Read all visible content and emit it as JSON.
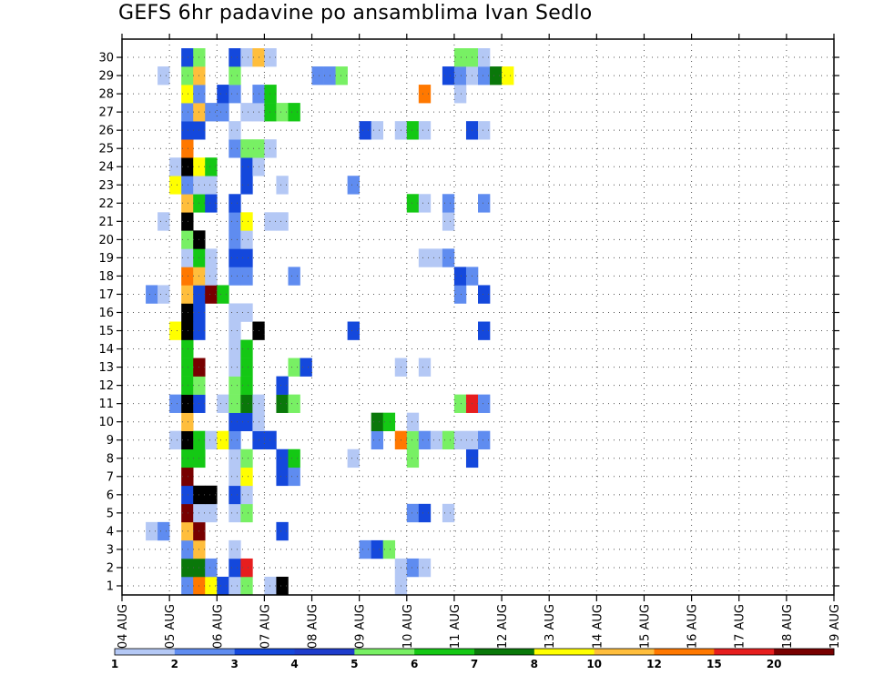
{
  "chart_data": {
    "type": "heatmap",
    "title": "GEFS 6hr padavine po ansamblima Ivan Sedlo",
    "xlabel": "",
    "ylabel": "",
    "x_tick_labels": [
      "04 AUG",
      "05 AUG",
      "06 AUG",
      "07 AUG",
      "08 AUG",
      "09 AUG",
      "10 AUG",
      "11 AUG",
      "12 AUG",
      "13 AUG",
      "14 AUG",
      "15 AUG",
      "16 AUG",
      "17 AUG",
      "18 AUG",
      "19 AUG"
    ],
    "y_tick_labels": [
      "1",
      "2",
      "3",
      "4",
      "5",
      "6",
      "7",
      "8",
      "9",
      "10",
      "11",
      "12",
      "13",
      "14",
      "15",
      "16",
      "17",
      "18",
      "19",
      "20",
      "21",
      "22",
      "23",
      "24",
      "25",
      "26",
      "27",
      "28",
      "29",
      "30"
    ],
    "time_steps_per_day": 4,
    "members": 30,
    "grid": true,
    "legend": {
      "placement": "bottom",
      "levels": [
        "1",
        "2",
        "3",
        "4",
        "5",
        "6",
        "7",
        "8",
        "10",
        "12",
        "15",
        "20"
      ],
      "colors": [
        "#b4c8f5",
        "#5f8cf0",
        "#1448dc",
        "#1e3ccc",
        "#78f064",
        "#14c814",
        "#0a780a",
        "#ffff00",
        "#ffbe3c",
        "#ff7800",
        "#e61e1e",
        "#780000"
      ]
    },
    "cells": [
      [
        1,
        5,
        2
      ],
      [
        1,
        6,
        10
      ],
      [
        1,
        7,
        8
      ],
      [
        1,
        8,
        3
      ],
      [
        1,
        9,
        1
      ],
      [
        1,
        10,
        5
      ],
      [
        1,
        12,
        1
      ],
      [
        1,
        13,
        13
      ],
      [
        1,
        23,
        1
      ],
      [
        2,
        5,
        7
      ],
      [
        2,
        6,
        7
      ],
      [
        2,
        7,
        2
      ],
      [
        2,
        9,
        3
      ],
      [
        2,
        10,
        11
      ],
      [
        2,
        23,
        1
      ],
      [
        2,
        24,
        2
      ],
      [
        2,
        25,
        1
      ],
      [
        3,
        5,
        2
      ],
      [
        3,
        6,
        9
      ],
      [
        3,
        9,
        1
      ],
      [
        3,
        20,
        2
      ],
      [
        3,
        21,
        3
      ],
      [
        3,
        22,
        5
      ],
      [
        4,
        2,
        1
      ],
      [
        4,
        3,
        2
      ],
      [
        4,
        5,
        9
      ],
      [
        4,
        6,
        12
      ],
      [
        4,
        13,
        3
      ],
      [
        5,
        5,
        12
      ],
      [
        5,
        6,
        1
      ],
      [
        5,
        7,
        1
      ],
      [
        5,
        9,
        1
      ],
      [
        5,
        10,
        5
      ],
      [
        5,
        24,
        2
      ],
      [
        5,
        25,
        3
      ],
      [
        5,
        27,
        1
      ],
      [
        6,
        5,
        3
      ],
      [
        6,
        6,
        14
      ],
      [
        6,
        7,
        13
      ],
      [
        6,
        9,
        3
      ],
      [
        6,
        10,
        1
      ],
      [
        7,
        5,
        12
      ],
      [
        7,
        9,
        1
      ],
      [
        7,
        10,
        8
      ],
      [
        7,
        13,
        3
      ],
      [
        7,
        14,
        2
      ],
      [
        8,
        5,
        6
      ],
      [
        8,
        6,
        6
      ],
      [
        8,
        9,
        1
      ],
      [
        8,
        10,
        5
      ],
      [
        8,
        13,
        3
      ],
      [
        8,
        14,
        6
      ],
      [
        8,
        19,
        1
      ],
      [
        8,
        24,
        5
      ],
      [
        8,
        29,
        3
      ],
      [
        9,
        4,
        1
      ],
      [
        9,
        5,
        13
      ],
      [
        9,
        6,
        6
      ],
      [
        9,
        7,
        1
      ],
      [
        9,
        8,
        8
      ],
      [
        9,
        9,
        2
      ],
      [
        9,
        11,
        3
      ],
      [
        9,
        12,
        3
      ],
      [
        9,
        21,
        2
      ],
      [
        9,
        23,
        10
      ],
      [
        9,
        24,
        5
      ],
      [
        9,
        25,
        2
      ],
      [
        9,
        26,
        1
      ],
      [
        9,
        27,
        5
      ],
      [
        9,
        28,
        1
      ],
      [
        9,
        29,
        1
      ],
      [
        9,
        30,
        2
      ],
      [
        10,
        5,
        9
      ],
      [
        10,
        9,
        3
      ],
      [
        10,
        10,
        3
      ],
      [
        10,
        11,
        1
      ],
      [
        10,
        21,
        7
      ],
      [
        10,
        22,
        6
      ],
      [
        10,
        24,
        1
      ],
      [
        11,
        4,
        2
      ],
      [
        11,
        5,
        14
      ],
      [
        11,
        6,
        3
      ],
      [
        11,
        8,
        1
      ],
      [
        11,
        9,
        5
      ],
      [
        11,
        10,
        7
      ],
      [
        11,
        11,
        1
      ],
      [
        11,
        13,
        7
      ],
      [
        11,
        14,
        5
      ],
      [
        11,
        28,
        5
      ],
      [
        11,
        29,
        11
      ],
      [
        11,
        30,
        2
      ],
      [
        12,
        5,
        6
      ],
      [
        12,
        6,
        5
      ],
      [
        12,
        9,
        5
      ],
      [
        12,
        10,
        6
      ],
      [
        12,
        13,
        3
      ],
      [
        13,
        5,
        6
      ],
      [
        13,
        6,
        12
      ],
      [
        13,
        9,
        1
      ],
      [
        13,
        10,
        6
      ],
      [
        13,
        14,
        5
      ],
      [
        13,
        15,
        3
      ],
      [
        13,
        23,
        1
      ],
      [
        13,
        25,
        1
      ],
      [
        14,
        5,
        6
      ],
      [
        14,
        9,
        1
      ],
      [
        14,
        10,
        6
      ],
      [
        15,
        4,
        8
      ],
      [
        15,
        5,
        14
      ],
      [
        15,
        6,
        3
      ],
      [
        15,
        9,
        1
      ],
      [
        15,
        11,
        13
      ],
      [
        15,
        19,
        3
      ],
      [
        15,
        30,
        3
      ],
      [
        16,
        5,
        14
      ],
      [
        16,
        6,
        3
      ],
      [
        16,
        9,
        1
      ],
      [
        16,
        10,
        1
      ],
      [
        17,
        2,
        2
      ],
      [
        17,
        3,
        1
      ],
      [
        17,
        5,
        9
      ],
      [
        17,
        6,
        3
      ],
      [
        17,
        7,
        12
      ],
      [
        17,
        8,
        6
      ],
      [
        17,
        28,
        2
      ],
      [
        17,
        30,
        3
      ],
      [
        18,
        5,
        10
      ],
      [
        18,
        6,
        9
      ],
      [
        18,
        7,
        1
      ],
      [
        18,
        9,
        2
      ],
      [
        18,
        10,
        2
      ],
      [
        18,
        14,
        2
      ],
      [
        18,
        28,
        3
      ],
      [
        18,
        29,
        2
      ],
      [
        19,
        5,
        1
      ],
      [
        19,
        6,
        6
      ],
      [
        19,
        7,
        1
      ],
      [
        19,
        9,
        3
      ],
      [
        19,
        10,
        3
      ],
      [
        19,
        25,
        1
      ],
      [
        19,
        26,
        1
      ],
      [
        19,
        27,
        2
      ],
      [
        20,
        5,
        5
      ],
      [
        20,
        6,
        14
      ],
      [
        20,
        9,
        2
      ],
      [
        20,
        10,
        1
      ],
      [
        21,
        3,
        1
      ],
      [
        21,
        5,
        14
      ],
      [
        21,
        9,
        2
      ],
      [
        21,
        10,
        8
      ],
      [
        21,
        12,
        1
      ],
      [
        21,
        13,
        1
      ],
      [
        21,
        27,
        1
      ],
      [
        22,
        5,
        9
      ],
      [
        22,
        6,
        6
      ],
      [
        22,
        7,
        3
      ],
      [
        22,
        9,
        3
      ],
      [
        22,
        24,
        6
      ],
      [
        22,
        25,
        1
      ],
      [
        22,
        27,
        2
      ],
      [
        22,
        30,
        2
      ],
      [
        23,
        4,
        8
      ],
      [
        23,
        5,
        2
      ],
      [
        23,
        6,
        1
      ],
      [
        23,
        7,
        1
      ],
      [
        23,
        10,
        3
      ],
      [
        23,
        13,
        1
      ],
      [
        23,
        19,
        2
      ],
      [
        24,
        4,
        1
      ],
      [
        24,
        5,
        14
      ],
      [
        24,
        6,
        8
      ],
      [
        24,
        7,
        6
      ],
      [
        24,
        10,
        3
      ],
      [
        24,
        11,
        1
      ],
      [
        25,
        5,
        10
      ],
      [
        25,
        9,
        2
      ],
      [
        25,
        10,
        5
      ],
      [
        25,
        11,
        5
      ],
      [
        25,
        12,
        1
      ],
      [
        26,
        5,
        3
      ],
      [
        26,
        6,
        3
      ],
      [
        26,
        9,
        1
      ],
      [
        26,
        20,
        3
      ],
      [
        26,
        21,
        1
      ],
      [
        26,
        23,
        1
      ],
      [
        26,
        24,
        6
      ],
      [
        26,
        25,
        1
      ],
      [
        26,
        29,
        3
      ],
      [
        26,
        30,
        1
      ],
      [
        27,
        5,
        2
      ],
      [
        27,
        6,
        9
      ],
      [
        27,
        7,
        2
      ],
      [
        27,
        8,
        2
      ],
      [
        27,
        10,
        1
      ],
      [
        27,
        11,
        1
      ],
      [
        27,
        12,
        6
      ],
      [
        27,
        13,
        5
      ],
      [
        27,
        14,
        6
      ],
      [
        28,
        5,
        8
      ],
      [
        28,
        6,
        2
      ],
      [
        28,
        8,
        3
      ],
      [
        28,
        9,
        2
      ],
      [
        28,
        11,
        2
      ],
      [
        28,
        12,
        6
      ],
      [
        28,
        25,
        10
      ],
      [
        28,
        28,
        1
      ],
      [
        29,
        3,
        1
      ],
      [
        29,
        5,
        5
      ],
      [
        29,
        6,
        9
      ],
      [
        29,
        9,
        5
      ],
      [
        29,
        16,
        2
      ],
      [
        29,
        17,
        2
      ],
      [
        29,
        18,
        5
      ],
      [
        29,
        27,
        3
      ],
      [
        29,
        28,
        2
      ],
      [
        29,
        29,
        1
      ],
      [
        29,
        30,
        2
      ],
      [
        29,
        31,
        7
      ],
      [
        29,
        32,
        8
      ],
      [
        30,
        5,
        3
      ],
      [
        30,
        6,
        5
      ],
      [
        30,
        9,
        3
      ],
      [
        30,
        10,
        1
      ],
      [
        30,
        11,
        9
      ],
      [
        30,
        12,
        1
      ],
      [
        30,
        28,
        5
      ],
      [
        30,
        29,
        5
      ],
      [
        30,
        30,
        1
      ]
    ]
  }
}
